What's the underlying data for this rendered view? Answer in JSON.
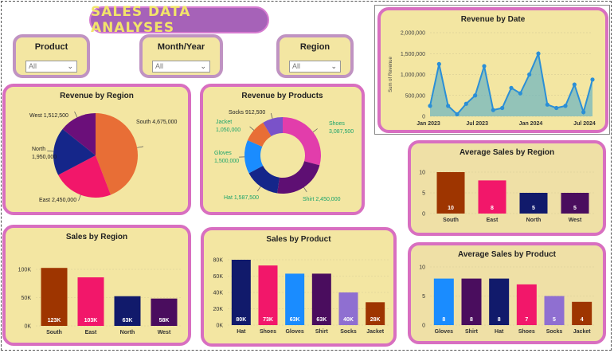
{
  "title": "SALES DATA ANALYSES",
  "filters": [
    {
      "label": "Product",
      "value": "All"
    },
    {
      "label": "Month/Year",
      "value": "All"
    },
    {
      "label": "Region",
      "value": "All"
    }
  ],
  "colors": {
    "South": "#9e3500",
    "East": "#f2176a",
    "North": "#111a6b",
    "West": "#4a0d5e",
    "Hat": "#111a6b",
    "Shoes": "#f2176a",
    "Gloves": "#1a8cff",
    "Shirt": "#4a0d5e",
    "Socks": "#8f6fd1",
    "Jacket": "#9e3500",
    "pieSouth": "#e86e36",
    "pieEast": "#f2176a",
    "pieNorth": "#15268a",
    "pieWest": "#6b0f7a",
    "donutShoes": "#e23dab",
    "donutShirt": "#5e0f73",
    "donutHat": "#15268a",
    "donutGloves": "#1a8cff",
    "donutJacket": "#e86e36",
    "donutSocks": "#7a52c9",
    "area": "#2b8fd6"
  },
  "chart_data": [
    {
      "id": "revenue_by_region",
      "type": "pie",
      "title": "Revenue by Region",
      "slices": [
        {
          "label": "South 4,675,000",
          "value": 4675000
        },
        {
          "label": "East 2,450,000",
          "value": 2450000
        },
        {
          "label": "North\n1,950,000",
          "value": 1950000
        },
        {
          "label": "West 1,512,500",
          "value": 1512500
        }
      ]
    },
    {
      "id": "revenue_by_products",
      "type": "pie",
      "title": "Revenue by Products",
      "slices": [
        {
          "label": "Shoes\n3,087,500",
          "value": 3087500
        },
        {
          "label": "Shirt 2,450,000",
          "value": 2450000
        },
        {
          "label": "Hat 1,587,500",
          "value": 1587500
        },
        {
          "label": "Gloves\n1,500,000",
          "value": 1500000
        },
        {
          "label": "Jacket\n1,050,000",
          "value": 1050000
        },
        {
          "label": "Socks 912,500",
          "value": 912500
        }
      ]
    },
    {
      "id": "revenue_by_date",
      "type": "area",
      "title": "Revenue by Date",
      "ylabel": "Sum of Revenue",
      "ylim": [
        0,
        2000000
      ],
      "yticks": [
        "0",
        "500,000",
        "1,000,000",
        "1,500,000",
        "2,000,000"
      ],
      "xticks": [
        "Jan 2023",
        "Jul 2023",
        "Jan 2024",
        "Jul 2024"
      ],
      "values": [
        250000,
        1250000,
        250000,
        50000,
        300000,
        500000,
        1200000,
        150000,
        200000,
        680000,
        550000,
        1000000,
        1500000,
        280000,
        200000,
        250000,
        760000,
        100000,
        880000
      ]
    },
    {
      "id": "avg_sales_by_region",
      "type": "bar",
      "title": "Average Sales by Region",
      "categories": [
        "South",
        "East",
        "North",
        "West"
      ],
      "values": [
        10,
        8,
        5,
        5
      ],
      "labels": [
        "10",
        "8",
        "5",
        "5"
      ],
      "ylim": [
        0,
        10
      ],
      "yticks": [
        "0",
        "5",
        "10"
      ]
    },
    {
      "id": "sales_by_region",
      "type": "bar",
      "title": "Sales by Region",
      "categories": [
        "South",
        "East",
        "North",
        "West"
      ],
      "values": [
        123000,
        103000,
        63000,
        58000
      ],
      "labels": [
        "123K",
        "103K",
        "63K",
        "58K"
      ],
      "ylim": [
        0,
        120000
      ],
      "yticks": [
        "0K",
        "50K",
        "100K"
      ]
    },
    {
      "id": "sales_by_product",
      "type": "bar",
      "title": "Sales by Product",
      "categories": [
        "Hat",
        "Shoes",
        "Gloves",
        "Shirt",
        "Socks",
        "Jacket"
      ],
      "values": [
        80000,
        73000,
        63000,
        63000,
        40000,
        28000
      ],
      "labels": [
        "80K",
        "73K",
        "63K",
        "63K",
        "40K",
        "28K"
      ],
      "ylim": [
        0,
        80000
      ],
      "yticks": [
        "0K",
        "20K",
        "40K",
        "60K",
        "80K"
      ]
    },
    {
      "id": "avg_sales_by_product",
      "type": "bar",
      "title": "Average Sales by Product",
      "categories": [
        "Gloves",
        "Shirt",
        "Hat",
        "Shoes",
        "Socks",
        "Jacket"
      ],
      "values": [
        8,
        8,
        8,
        7,
        5,
        4
      ],
      "labels": [
        "8",
        "8",
        "8",
        "7",
        "5",
        "4"
      ],
      "ylim": [
        0,
        10
      ],
      "yticks": [
        "0",
        "5",
        "10"
      ]
    }
  ]
}
